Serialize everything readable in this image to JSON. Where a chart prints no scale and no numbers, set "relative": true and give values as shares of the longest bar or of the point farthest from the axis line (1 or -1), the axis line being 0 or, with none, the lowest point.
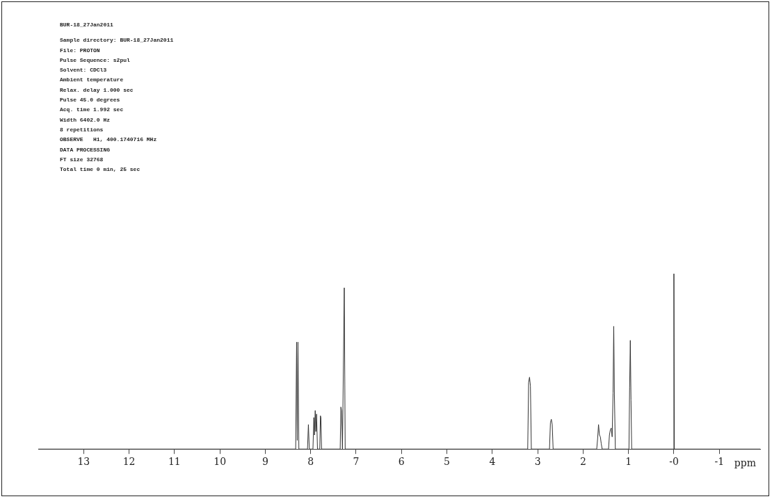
{
  "chart_data": {
    "type": "line",
    "title": "BUR-18_27Jan2011",
    "annotations": [
      "Sample directory: BUR-18_27Jan2011",
      "File: PROTON",
      "Pulse Sequence: s2pul",
      "Solvent: CDCl3",
      "Ambient temperature",
      "Relax. delay 1.000 sec",
      "Pulse 45.0 degrees",
      "Acq. time 1.992 sec",
      "Width 6402.0 Hz",
      "8 repetitions",
      "OBSERVE   H1, 400.1740716 MHz",
      "DATA PROCESSING",
      "FT size 32768",
      "Total time 0 min, 25 sec"
    ],
    "xlabel": "ppm",
    "relative": true,
    "legend": false,
    "grid": false,
    "marker": "none",
    "line_style": "solid",
    "xlim": [
      14,
      -1.9
    ],
    "xticks": [
      13,
      12,
      11,
      10,
      9,
      8,
      7,
      6,
      5,
      4,
      3,
      2,
      1,
      {
        "value": 0,
        "label": "-0"
      },
      -1
    ],
    "series": [
      {
        "color": "#333333",
        "x": [
          14,
          8.33,
          8.31,
          8.295,
          8.28,
          8.26,
          8.07,
          8.05,
          8.03,
          7.95,
          7.93,
          7.915,
          7.9,
          7.885,
          7.87,
          7.85,
          7.8,
          7.785,
          7.775,
          7.76,
          7.35,
          7.335,
          7.32,
          7.3,
          7.26,
          7.24,
          3.22,
          3.2,
          3.18,
          3.16,
          3.14,
          2.74,
          2.72,
          2.7,
          2.68,
          2.66,
          1.7,
          1.68,
          1.66,
          1.64,
          1.62,
          1.6,
          1.58,
          1.44,
          1.42,
          1.4,
          1.38,
          1.36,
          1.34,
          1.325,
          1.31,
          1.29,
          0.99,
          0.975,
          0.96,
          0.945,
          0.93,
          0.01,
          0,
          -0.01,
          -1.9
        ],
        "values": [
          0,
          0,
          0.61,
          0.05,
          0.61,
          0,
          0,
          0.14,
          0,
          0,
          0.18,
          0.08,
          0.22,
          0.1,
          0.2,
          0,
          0,
          0.19,
          0.18,
          0,
          0,
          0.24,
          0.22,
          0,
          0.92,
          0,
          0,
          0.38,
          0.41,
          0.36,
          0,
          0,
          0.15,
          0.17,
          0.14,
          0,
          0,
          0.06,
          0.14,
          0.08,
          0.07,
          0.03,
          0,
          0,
          0.08,
          0.11,
          0.12,
          0.07,
          0.32,
          0.7,
          0.31,
          0,
          0,
          0.35,
          0.62,
          0.28,
          0,
          0,
          1,
          0,
          0
        ]
      }
    ]
  }
}
